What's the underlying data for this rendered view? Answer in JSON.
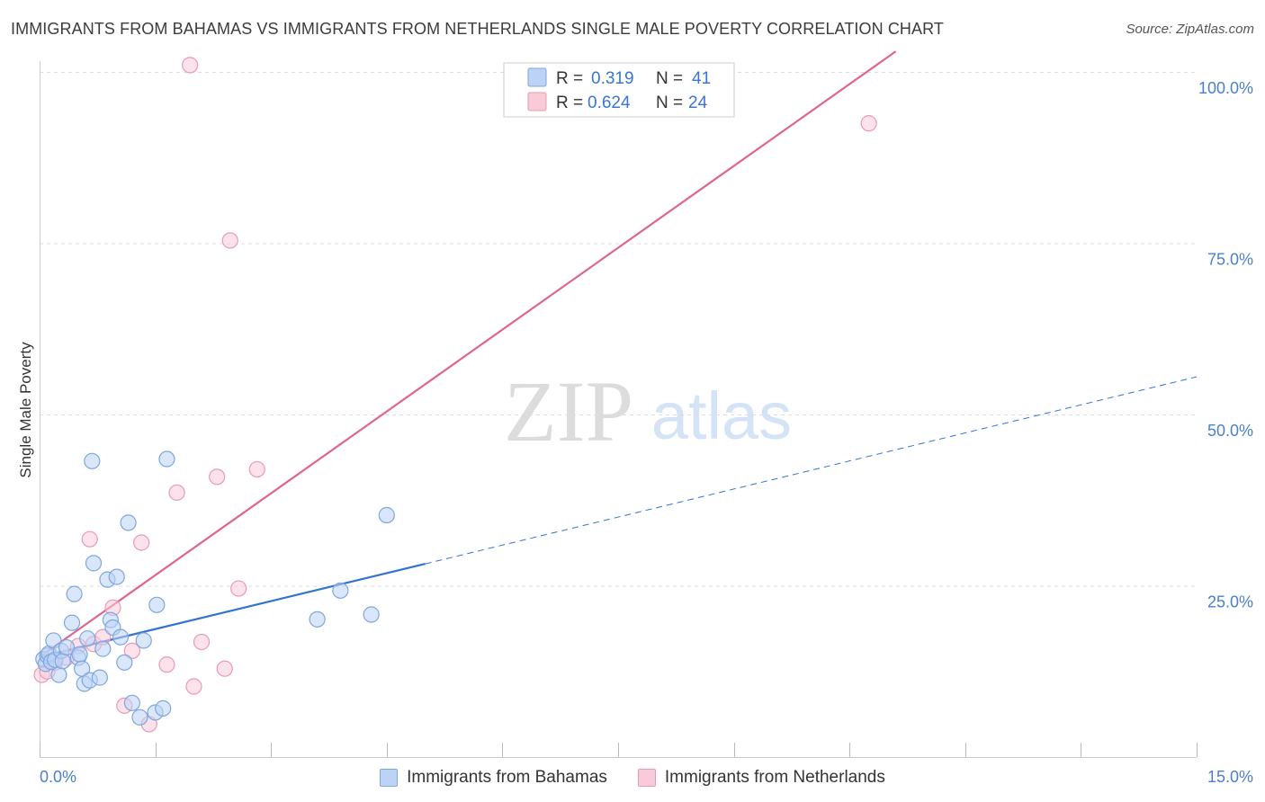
{
  "header": {
    "title": "IMMIGRANTS FROM BAHAMAS VS IMMIGRANTS FROM NETHERLANDS SINGLE MALE POVERTY CORRELATION CHART",
    "source": "Source: ZipAtlas.com"
  },
  "watermark": {
    "zip": "ZIP",
    "atlas": "atlas"
  },
  "colors": {
    "blue_fill": "#bcd3f5",
    "blue_stroke": "#7ea6e0",
    "blue_line": "#3474d1",
    "pink_fill": "#f9cbd9",
    "pink_stroke": "#e99ab4",
    "pink_line": "#e0648e",
    "tick_text": "#4a7fd0",
    "grid": "#dddddd"
  },
  "legend": {
    "rows": [
      {
        "r_label": "R =",
        "r_value": "0.319",
        "n_label": "N =",
        "n_value": "41"
      },
      {
        "r_label": "R =",
        "r_value": "0.624",
        "n_label": "N =",
        "n_value": "24"
      }
    ]
  },
  "chart_data": {
    "type": "scatter",
    "title": "IMMIGRANTS FROM BAHAMAS VS IMMIGRANTS FROM NETHERLANDS SINGLE MALE POVERTY CORRELATION CHART",
    "xlabel": "",
    "ylabel": "Single Male Poverty",
    "xlim": [
      0,
      15
    ],
    "ylim": [
      0,
      100
    ],
    "x_tick_labels": [
      "0.0%",
      "15.0%"
    ],
    "y_ticks": [
      25,
      50,
      75,
      100
    ],
    "y_tick_labels": [
      "25.0%",
      "50.0%",
      "75.0%",
      "100.0%"
    ],
    "grid": true,
    "series": [
      {
        "name": "Immigrants from Bahamas",
        "color": "#bcd3f5",
        "r": 0.319,
        "n": 41,
        "trend": {
          "x0": 0.0,
          "y0": 14.6,
          "x1": 5.0,
          "y1": 28.2,
          "extend_to_x": 15.0,
          "extend_y": 55.5
        },
        "points": [
          [
            0.05,
            14.3
          ],
          [
            0.08,
            13.6
          ],
          [
            0.1,
            14.8
          ],
          [
            0.12,
            15.1
          ],
          [
            0.15,
            13.9
          ],
          [
            0.18,
            17.0
          ],
          [
            0.2,
            14.2
          ],
          [
            0.25,
            12.0
          ],
          [
            0.28,
            15.5
          ],
          [
            0.3,
            14.0
          ],
          [
            0.35,
            16.0
          ],
          [
            0.42,
            19.6
          ],
          [
            0.45,
            23.8
          ],
          [
            0.5,
            14.5
          ],
          [
            0.52,
            15.0
          ],
          [
            0.55,
            12.9
          ],
          [
            0.58,
            10.7
          ],
          [
            0.62,
            17.3
          ],
          [
            0.65,
            11.2
          ],
          [
            0.7,
            28.3
          ],
          [
            0.68,
            43.2
          ],
          [
            0.78,
            11.6
          ],
          [
            0.82,
            15.8
          ],
          [
            0.88,
            25.9
          ],
          [
            0.92,
            20.0
          ],
          [
            0.95,
            18.9
          ],
          [
            1.0,
            26.3
          ],
          [
            1.05,
            17.5
          ],
          [
            1.1,
            13.8
          ],
          [
            1.15,
            34.2
          ],
          [
            1.2,
            7.9
          ],
          [
            1.3,
            5.8
          ],
          [
            1.35,
            17.0
          ],
          [
            1.5,
            6.5
          ],
          [
            1.52,
            22.2
          ],
          [
            1.6,
            7.1
          ],
          [
            1.65,
            43.5
          ],
          [
            3.6,
            20.1
          ],
          [
            3.9,
            24.3
          ],
          [
            4.3,
            20.8
          ],
          [
            4.5,
            35.3
          ]
        ]
      },
      {
        "name": "Immigrants from Netherlands",
        "color": "#f9cbd9",
        "r": 0.624,
        "n": 24,
        "trend": {
          "x0": 0.0,
          "y0": 14.6,
          "x1": 11.1,
          "y1": 103.0
        },
        "points": [
          [
            0.03,
            12.0
          ],
          [
            0.1,
            12.5
          ],
          [
            0.2,
            13.8
          ],
          [
            0.35,
            14.5
          ],
          [
            0.5,
            16.2
          ],
          [
            0.65,
            31.8
          ],
          [
            0.7,
            16.5
          ],
          [
            0.82,
            17.5
          ],
          [
            0.95,
            21.8
          ],
          [
            1.1,
            7.5
          ],
          [
            1.2,
            15.5
          ],
          [
            1.32,
            31.3
          ],
          [
            1.42,
            4.8
          ],
          [
            1.65,
            13.5
          ],
          [
            1.78,
            38.6
          ],
          [
            1.95,
            101.0
          ],
          [
            2.0,
            10.3
          ],
          [
            2.1,
            16.8
          ],
          [
            2.3,
            40.9
          ],
          [
            2.4,
            12.9
          ],
          [
            2.47,
            75.4
          ],
          [
            2.58,
            24.6
          ],
          [
            2.82,
            42.0
          ],
          [
            10.75,
            92.5
          ]
        ]
      }
    ]
  }
}
